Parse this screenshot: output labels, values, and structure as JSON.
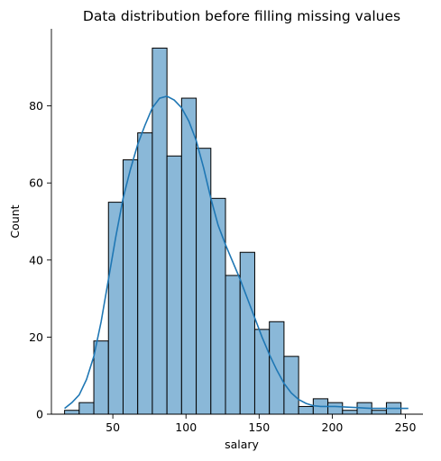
{
  "chart_data": {
    "type": "bar",
    "title": "Data distribution before filling missing values",
    "xlabel": "salary",
    "ylabel": "Count",
    "xlim": [
      8,
      262
    ],
    "ylim": [
      0,
      100
    ],
    "xticks": [
      50,
      100,
      150,
      200,
      250
    ],
    "yticks": [
      0,
      20,
      40,
      60,
      80
    ],
    "bin_width": 10,
    "bins": [
      {
        "start": 17,
        "count": 1
      },
      {
        "start": 27,
        "count": 3
      },
      {
        "start": 37,
        "count": 19
      },
      {
        "start": 47,
        "count": 55
      },
      {
        "start": 57,
        "count": 66
      },
      {
        "start": 67,
        "count": 73
      },
      {
        "start": 77,
        "count": 95
      },
      {
        "start": 87,
        "count": 67
      },
      {
        "start": 97,
        "count": 82
      },
      {
        "start": 107,
        "count": 69
      },
      {
        "start": 117,
        "count": 56
      },
      {
        "start": 127,
        "count": 36
      },
      {
        "start": 137,
        "count": 42
      },
      {
        "start": 147,
        "count": 22
      },
      {
        "start": 157,
        "count": 24
      },
      {
        "start": 167,
        "count": 15
      },
      {
        "start": 177,
        "count": 2
      },
      {
        "start": 187,
        "count": 4
      },
      {
        "start": 197,
        "count": 3
      },
      {
        "start": 207,
        "count": 1
      },
      {
        "start": 217,
        "count": 3
      },
      {
        "start": 227,
        "count": 1
      },
      {
        "start": 237,
        "count": 3
      }
    ],
    "kde": {
      "x": [
        17,
        22,
        27,
        32,
        37,
        42,
        47,
        52,
        57,
        62,
        67,
        72,
        77,
        82,
        87,
        92,
        97,
        102,
        107,
        112,
        117,
        122,
        127,
        132,
        137,
        142,
        147,
        152,
        157,
        162,
        167,
        172,
        177,
        182,
        187,
        192,
        197,
        202,
        207,
        212,
        217,
        222,
        227,
        232,
        237,
        242,
        247,
        252
      ],
      "y": [
        1.5,
        3,
        5,
        9,
        15,
        24,
        35,
        46,
        56,
        63.5,
        70,
        75,
        79.5,
        82,
        82.5,
        81.5,
        79.5,
        76,
        71,
        64,
        56,
        49,
        44,
        39.5,
        35,
        30,
        25,
        20,
        15.5,
        11.5,
        8,
        5.5,
        3.8,
        2.8,
        2.2,
        2,
        2,
        2,
        1.9,
        1.8,
        1.7,
        1.6,
        1.5,
        1.5,
        1.5,
        1.5,
        1.5,
        1.5
      ]
    },
    "grid": false,
    "colors": {
      "bar_fill": "#8ab8d8",
      "kde_line": "#1f77b4"
    }
  }
}
